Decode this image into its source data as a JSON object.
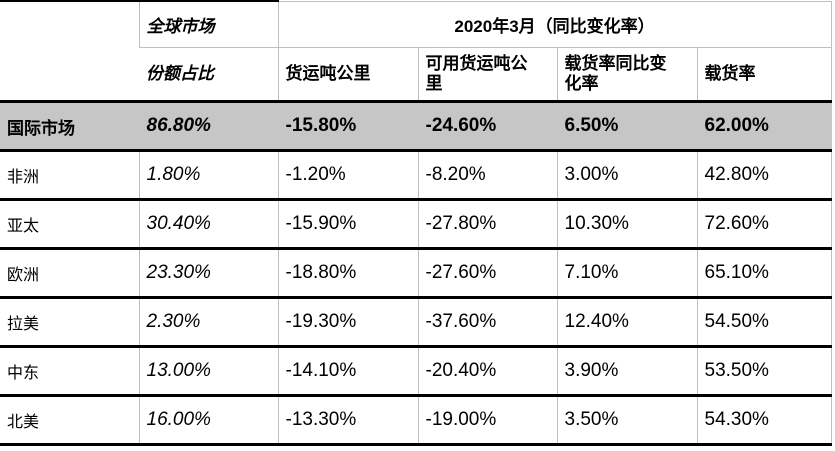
{
  "table": {
    "header": {
      "corner": "",
      "global_market": "全球市场",
      "period": "2020年3月（同比变化率）",
      "share": "份额占比",
      "columns": {
        "ftk": "货运吨公里",
        "aftk": "可用货运吨公里",
        "plf_change": "载货率同比变化率",
        "plf": "载货率"
      }
    },
    "rows": [
      {
        "region": "国际市场",
        "share": "86.80%",
        "ftk": "-15.80%",
        "aftk": "-24.60%",
        "plf_change": "6.50%",
        "plf": "62.00%"
      },
      {
        "region": "非洲",
        "share": "1.80%",
        "ftk": "-1.20%",
        "aftk": "-8.20%",
        "plf_change": "3.00%",
        "plf": "42.80%"
      },
      {
        "region": "亚太",
        "share": "30.40%",
        "ftk": "-15.90%",
        "aftk": "-27.80%",
        "plf_change": "10.30%",
        "plf": "72.60%"
      },
      {
        "region": "欧洲",
        "share": "23.30%",
        "ftk": "-18.80%",
        "aftk": "-27.60%",
        "plf_change": "7.10%",
        "plf": "65.10%"
      },
      {
        "region": "拉美",
        "share": "2.30%",
        "ftk": "-19.30%",
        "aftk": "-37.60%",
        "plf_change": "12.40%",
        "plf": "54.50%"
      },
      {
        "region": "中东",
        "share": "13.00%",
        "ftk": "-14.10%",
        "aftk": "-20.40%",
        "plf_change": "3.90%",
        "plf": "53.50%"
      },
      {
        "region": "北美",
        "share": "16.00%",
        "ftk": "-13.30%",
        "aftk": "-19.00%",
        "plf_change": "3.50%",
        "plf": "54.30%"
      }
    ],
    "colors": {
      "highlight_row_bg": "#c6c6c6",
      "grid_line": "#bfbfbf",
      "heavy_line": "#000000"
    }
  },
  "chart_data": {
    "type": "table",
    "title": "2020年3月（同比变化率）",
    "columns": [
      "",
      "全球市场份额占比",
      "货运吨公里",
      "可用货运吨公里",
      "载货率同比变化率",
      "载货率"
    ],
    "rows": [
      [
        "国际市场",
        "86.80%",
        "-15.80%",
        "-24.60%",
        "6.50%",
        "62.00%"
      ],
      [
        "非洲",
        "1.80%",
        "-1.20%",
        "-8.20%",
        "3.00%",
        "42.80%"
      ],
      [
        "亚太",
        "30.40%",
        "-15.90%",
        "-27.80%",
        "10.30%",
        "72.60%"
      ],
      [
        "欧洲",
        "23.30%",
        "-18.80%",
        "-27.60%",
        "7.10%",
        "65.10%"
      ],
      [
        "拉美",
        "2.30%",
        "-19.30%",
        "-37.60%",
        "12.40%",
        "54.50%"
      ],
      [
        "中东",
        "13.00%",
        "-14.10%",
        "-20.40%",
        "3.90%",
        "53.50%"
      ],
      [
        "北美",
        "16.00%",
        "-13.30%",
        "-19.00%",
        "3.50%",
        "54.30%"
      ]
    ]
  }
}
